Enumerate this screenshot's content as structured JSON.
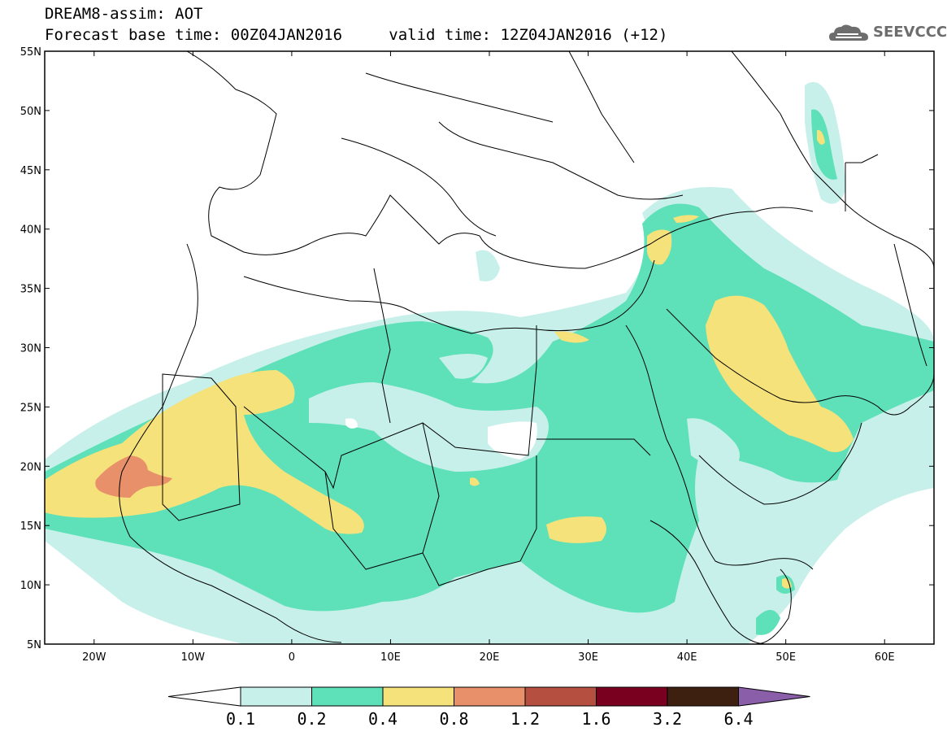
{
  "header": {
    "title": "DREAM8-assim: AOT",
    "base_label": "Forecast base time: 00Z04JAN2016",
    "valid_label": "valid time: 12Z04JAN2016 (+12)"
  },
  "logo": {
    "text": "SEEVCCC"
  },
  "map": {
    "lat_labels": [
      "55N",
      "50N",
      "45N",
      "40N",
      "35N",
      "30N",
      "25N",
      "20N",
      "15N",
      "10N",
      "5N"
    ],
    "lon_labels": [
      "20W",
      "10W",
      "0",
      "10E",
      "20E",
      "30E",
      "40E",
      "50E",
      "60E"
    ],
    "extent": {
      "lon_min": -25,
      "lon_max": 65,
      "lat_min": 5,
      "lat_max": 55
    }
  },
  "colorbar": {
    "labels": [
      "0.1",
      "0.2",
      "0.4",
      "0.8",
      "1.2",
      "1.6",
      "3.2",
      "6.4"
    ],
    "colors": [
      "#ffffff",
      "#c8f0ea",
      "#5ee0b8",
      "#f5e27a",
      "#e8906a",
      "#b55040",
      "#7a0020",
      "#3d2010",
      "#8a5ea8"
    ]
  }
}
